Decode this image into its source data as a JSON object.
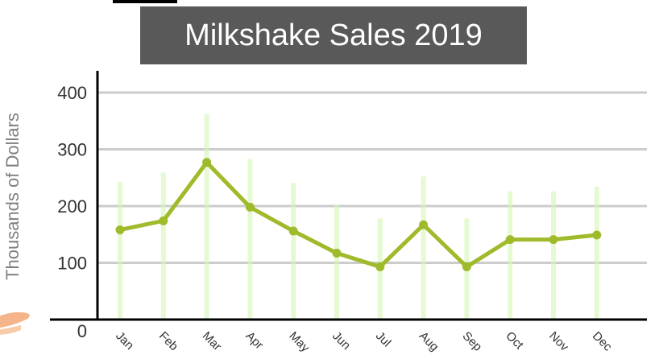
{
  "chart_data": {
    "type": "line",
    "title": "Milkshake Sales 2019",
    "ylabel": "Thousands of Dollars",
    "xlabel": "",
    "categories": [
      "Jan",
      "Feb",
      "Mar",
      "Apr",
      "May",
      "Jun",
      "Jul",
      "Aug",
      "Sep",
      "Oct",
      "Nov",
      "Dec"
    ],
    "yticks": [
      "400",
      "300",
      "200",
      "100",
      "0"
    ],
    "ytick_values": [
      400,
      300,
      200,
      100,
      0
    ],
    "series": [
      {
        "values": [
          158,
          174,
          277,
          198,
          156,
          117,
          93,
          167,
          93,
          141,
          141,
          149
        ]
      }
    ],
    "ylim": [
      0,
      420
    ],
    "grid": true,
    "legend": "none",
    "colors": {
      "line": "#9fba2a",
      "glow": "#d4f7b4",
      "grid": "#cccccc",
      "axis": "#000000",
      "tick_text": "#333333",
      "title_bg": "#595959",
      "title_text": "#ffffff"
    }
  }
}
